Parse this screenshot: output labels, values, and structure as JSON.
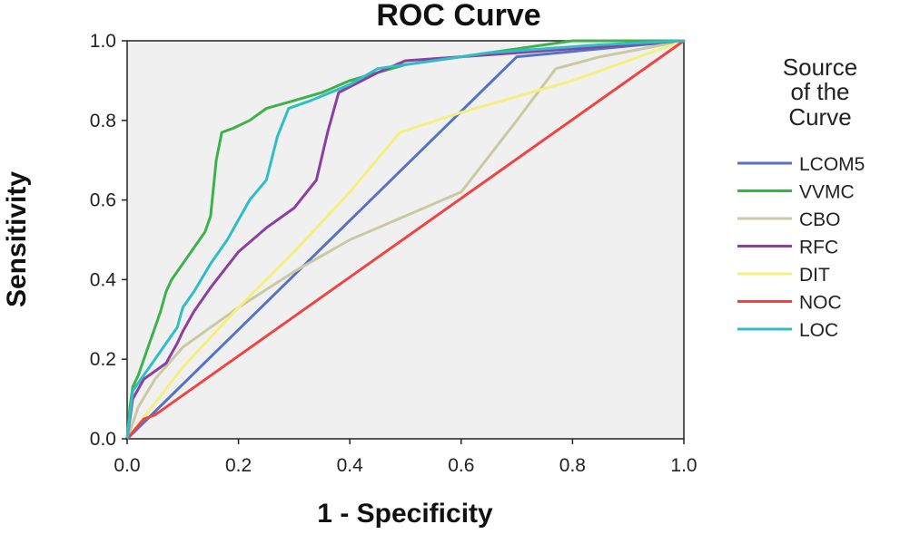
{
  "chart_data": {
    "type": "line",
    "title": "ROC Curve",
    "xlabel": "1 - Specificity",
    "ylabel": "Sensitivity",
    "xlim": [
      0.0,
      1.0
    ],
    "ylim": [
      0.0,
      1.0
    ],
    "x_ticks": [
      "0.0",
      "0.2",
      "0.4",
      "0.6",
      "0.8",
      "1.0"
    ],
    "y_ticks": [
      "0.0",
      "0.2",
      "0.4",
      "0.6",
      "0.8",
      "1.0"
    ],
    "grid": false,
    "legend": {
      "title_lines": [
        "Source",
        "of the",
        "Curve"
      ],
      "placement": "right"
    },
    "series": [
      {
        "name": "LCOM5",
        "color": "#5572c6",
        "points": [
          [
            0,
            0
          ],
          [
            0.7,
            0.96
          ],
          [
            1,
            1
          ]
        ]
      },
      {
        "name": "VVMC",
        "color": "#3db24a",
        "points": [
          [
            0,
            0
          ],
          [
            0.005,
            0.08
          ],
          [
            0.01,
            0.13
          ],
          [
            0.02,
            0.16
          ],
          [
            0.03,
            0.2
          ],
          [
            0.04,
            0.24
          ],
          [
            0.05,
            0.28
          ],
          [
            0.06,
            0.32
          ],
          [
            0.07,
            0.37
          ],
          [
            0.08,
            0.4
          ],
          [
            0.1,
            0.44
          ],
          [
            0.12,
            0.48
          ],
          [
            0.14,
            0.52
          ],
          [
            0.15,
            0.56
          ],
          [
            0.16,
            0.7
          ],
          [
            0.17,
            0.77
          ],
          [
            0.19,
            0.78
          ],
          [
            0.22,
            0.8
          ],
          [
            0.25,
            0.83
          ],
          [
            0.3,
            0.85
          ],
          [
            0.35,
            0.87
          ],
          [
            0.4,
            0.9
          ],
          [
            0.45,
            0.92
          ],
          [
            0.5,
            0.94
          ],
          [
            0.6,
            0.96
          ],
          [
            0.7,
            0.98
          ],
          [
            0.8,
            1.0
          ],
          [
            1,
            1
          ]
        ]
      },
      {
        "name": "CBO",
        "color": "#c9c9a2",
        "points": [
          [
            0,
            0
          ],
          [
            0.02,
            0.08
          ],
          [
            0.05,
            0.15
          ],
          [
            0.1,
            0.23
          ],
          [
            0.2,
            0.33
          ],
          [
            0.3,
            0.42
          ],
          [
            0.4,
            0.5
          ],
          [
            0.5,
            0.56
          ],
          [
            0.6,
            0.62
          ],
          [
            0.7,
            0.8
          ],
          [
            0.77,
            0.93
          ],
          [
            0.85,
            0.96
          ],
          [
            1,
            1
          ]
        ]
      },
      {
        "name": "RFC",
        "color": "#8b3fa0",
        "points": [
          [
            0,
            0
          ],
          [
            0.01,
            0.1
          ],
          [
            0.03,
            0.15
          ],
          [
            0.05,
            0.17
          ],
          [
            0.07,
            0.19
          ],
          [
            0.09,
            0.24
          ],
          [
            0.1,
            0.27
          ],
          [
            0.12,
            0.32
          ],
          [
            0.15,
            0.38
          ],
          [
            0.2,
            0.47
          ],
          [
            0.25,
            0.53
          ],
          [
            0.3,
            0.58
          ],
          [
            0.34,
            0.65
          ],
          [
            0.36,
            0.77
          ],
          [
            0.38,
            0.87
          ],
          [
            0.45,
            0.92
          ],
          [
            0.5,
            0.95
          ],
          [
            0.6,
            0.96
          ],
          [
            0.7,
            0.97
          ],
          [
            0.8,
            0.98
          ],
          [
            1,
            1
          ]
        ]
      },
      {
        "name": "DIT",
        "color": "#f3f080",
        "points": [
          [
            0,
            0
          ],
          [
            0.1,
            0.18
          ],
          [
            0.2,
            0.33
          ],
          [
            0.3,
            0.47
          ],
          [
            0.4,
            0.62
          ],
          [
            0.49,
            0.77
          ],
          [
            0.6,
            0.82
          ],
          [
            0.7,
            0.86
          ],
          [
            0.8,
            0.9
          ],
          [
            0.9,
            0.95
          ],
          [
            1,
            1
          ]
        ]
      },
      {
        "name": "NOC",
        "color": "#ee4443",
        "points": [
          [
            0,
            0
          ],
          [
            0.03,
            0.05
          ],
          [
            0.05,
            0.06
          ],
          [
            1,
            1
          ]
        ]
      },
      {
        "name": "LOC",
        "color": "#2fbec8",
        "points": [
          [
            0,
            0
          ],
          [
            0.01,
            0.12
          ],
          [
            0.03,
            0.16
          ],
          [
            0.05,
            0.2
          ],
          [
            0.07,
            0.24
          ],
          [
            0.09,
            0.28
          ],
          [
            0.1,
            0.33
          ],
          [
            0.12,
            0.37
          ],
          [
            0.15,
            0.44
          ],
          [
            0.18,
            0.5
          ],
          [
            0.2,
            0.55
          ],
          [
            0.22,
            0.6
          ],
          [
            0.25,
            0.65
          ],
          [
            0.27,
            0.76
          ],
          [
            0.29,
            0.83
          ],
          [
            0.33,
            0.85
          ],
          [
            0.4,
            0.89
          ],
          [
            0.45,
            0.93
          ],
          [
            0.55,
            0.95
          ],
          [
            0.65,
            0.97
          ],
          [
            0.75,
            0.98
          ],
          [
            0.85,
            0.99
          ],
          [
            1,
            1
          ]
        ]
      }
    ]
  }
}
